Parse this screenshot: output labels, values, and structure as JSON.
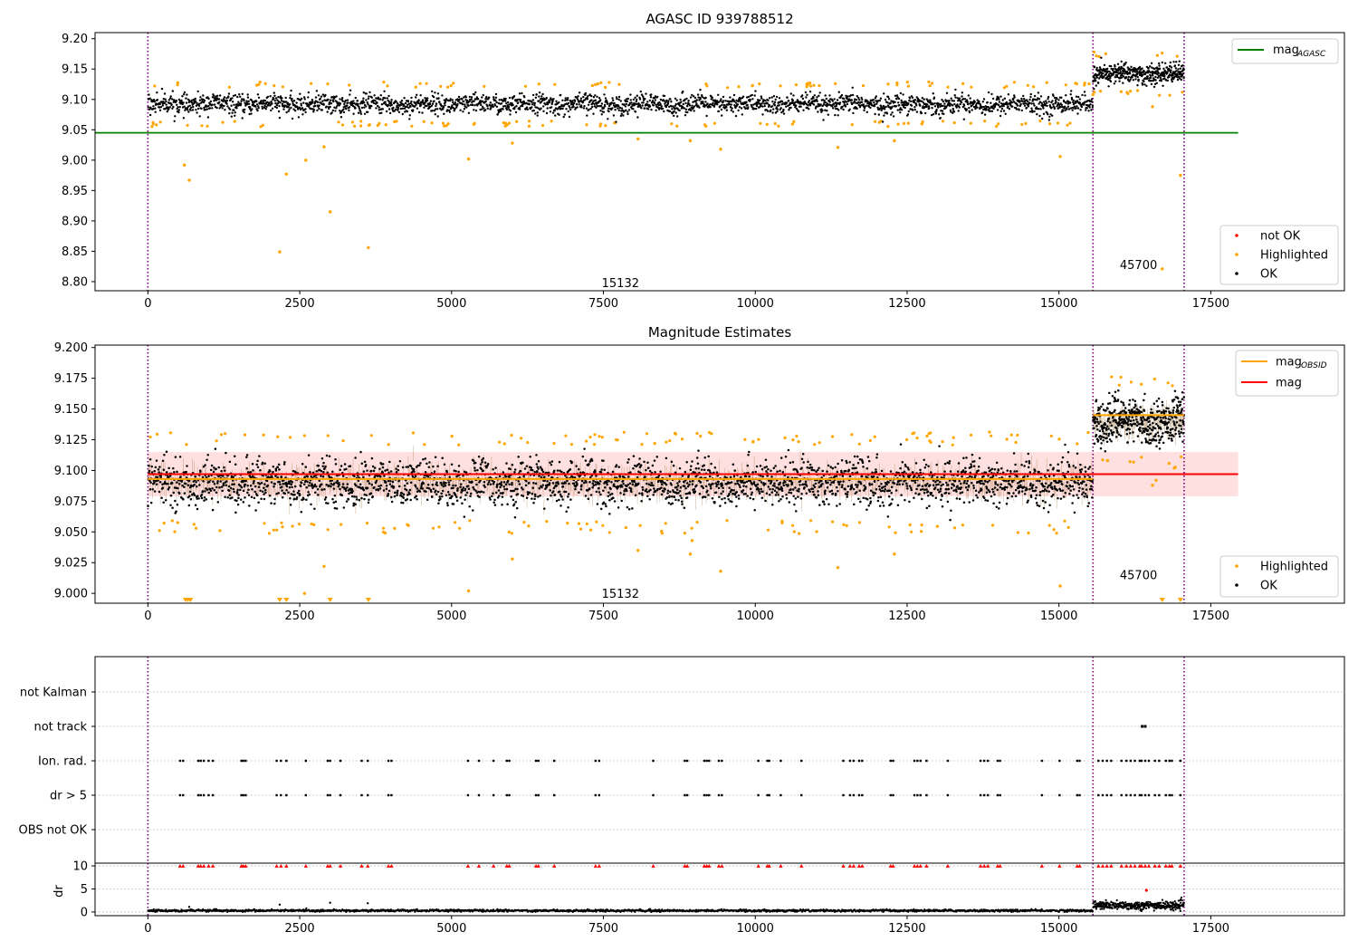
{
  "chart_data": [
    {
      "type": "scatter",
      "title": "AGASC ID 939788512",
      "xlim": [
        -870,
        19700
      ],
      "ylim": [
        8.785,
        9.21
      ],
      "x_ticks": [
        0,
        2500,
        5000,
        7500,
        10000,
        12500,
        15000,
        17500
      ],
      "x_tick_labels": [
        "0",
        "2500",
        "5000",
        "7500",
        "10000",
        "12500",
        "15000",
        "17500"
      ],
      "y_ticks": [
        8.8,
        8.85,
        8.9,
        8.95,
        9.0,
        9.05,
        9.1,
        9.15,
        9.2
      ],
      "y_tick_labels": [
        "8.80",
        "8.85",
        "8.90",
        "8.95",
        "9.00",
        "9.05",
        "9.10",
        "9.15",
        "9.20"
      ],
      "obs_boundaries": [
        0,
        15560,
        17060
      ],
      "obsid_labels": [
        {
          "text": "15132",
          "x": 7780,
          "y": 8.797
        },
        {
          "text": "45700",
          "x": 16310,
          "y": 8.827
        }
      ],
      "reference_lines": [
        {
          "name": "mag_AGASC",
          "value": 9.045,
          "x_range": [
            -870,
            17950
          ],
          "color": "#008000"
        }
      ],
      "ok_segments": [
        {
          "x_range": [
            0,
            15560
          ],
          "mean": 9.092,
          "spread": 0.016
        },
        {
          "x_range": [
            15560,
            17060
          ],
          "mean": 9.142,
          "spread": 0.016
        }
      ],
      "highlighted_outliers": [
        [
          600,
          8.992
        ],
        [
          680,
          8.967
        ],
        [
          2170,
          8.849
        ],
        [
          2280,
          8.977
        ],
        [
          2600,
          9.0
        ],
        [
          2900,
          9.022
        ],
        [
          3000,
          8.915
        ],
        [
          3630,
          8.856
        ],
        [
          5280,
          9.002
        ],
        [
          6000,
          9.028
        ],
        [
          8070,
          9.035
        ],
        [
          8930,
          9.032
        ],
        [
          9430,
          9.018
        ],
        [
          11360,
          9.021
        ],
        [
          12290,
          9.032
        ],
        [
          15020,
          9.006
        ],
        [
          16540,
          9.088
        ],
        [
          16700,
          8.821
        ],
        [
          17000,
          8.975
        ]
      ],
      "legend": {
        "series": [
          {
            "label": "mag",
            "sub": "AGASC",
            "color": "#008000",
            "kind": "line"
          }
        ],
        "points": [
          {
            "label": "not OK",
            "color": "#ff0000"
          },
          {
            "label": "Highlighted",
            "color": "#ffa500"
          },
          {
            "label": "OK",
            "color": "#000000"
          }
        ]
      }
    },
    {
      "type": "scatter",
      "title": "Magnitude Estimates",
      "xlim": [
        -870,
        19700
      ],
      "ylim": [
        8.992,
        9.202
      ],
      "x_ticks": [
        0,
        2500,
        5000,
        7500,
        10000,
        12500,
        15000,
        17500
      ],
      "x_tick_labels": [
        "0",
        "2500",
        "5000",
        "7500",
        "10000",
        "12500",
        "15000",
        "17500"
      ],
      "y_ticks": [
        9.0,
        9.025,
        9.05,
        9.075,
        9.1,
        9.125,
        9.15,
        9.175,
        9.2
      ],
      "y_tick_labels": [
        "9.000",
        "9.025",
        "9.050",
        "9.075",
        "9.100",
        "9.125",
        "9.150",
        "9.175",
        "9.200"
      ],
      "obs_boundaries": [
        0,
        15560,
        17060
      ],
      "obsid_labels": [
        {
          "text": "15132",
          "x": 7780,
          "y": 8.9995
        },
        {
          "text": "45700",
          "x": 16310,
          "y": 9.0145
        }
      ],
      "band": {
        "x_range": [
          0,
          17950
        ],
        "y_range": [
          9.079,
          9.115
        ],
        "color": "#ffcccc"
      },
      "reference_lines": [
        {
          "name": "mag",
          "value": 9.097,
          "x_range": [
            0,
            17950
          ],
          "color": "#ff0000"
        },
        {
          "name": "mag_OBSID",
          "value": 9.093,
          "x_range": [
            0,
            15560
          ],
          "color": "#ffa500"
        },
        {
          "name": "mag_OBSID",
          "value": 9.145,
          "x_range": [
            15560,
            17060
          ],
          "color": "#ffa500"
        }
      ],
      "ok_segments": [
        {
          "x_range": [
            0,
            15560
          ],
          "mean": 9.09,
          "spread": 0.018
        },
        {
          "x_range": [
            15560,
            17060
          ],
          "mean": 9.14,
          "spread": 0.017
        }
      ],
      "highlighted_outliers": [
        [
          5280,
          9.002
        ],
        [
          6000,
          9.028
        ],
        [
          8070,
          9.035
        ],
        [
          8930,
          9.032
        ],
        [
          8960,
          9.043
        ],
        [
          9430,
          9.018
        ],
        [
          11360,
          9.021
        ],
        [
          12290,
          9.032
        ],
        [
          15020,
          9.006
        ],
        [
          16540,
          9.088
        ],
        [
          16600,
          9.092
        ],
        [
          15800,
          9.108
        ],
        [
          2580,
          9.0
        ],
        [
          2900,
          9.022
        ]
      ],
      "clipped_markers_x": [
        620,
        660,
        700,
        2170,
        2280,
        3000,
        3630,
        16700,
        17000
      ],
      "legend": {
        "series": [
          {
            "label": "mag",
            "sub": "OBSID",
            "color": "#ffa500",
            "kind": "line"
          },
          {
            "label": "mag",
            "sub": "",
            "color": "#ff0000",
            "kind": "line"
          }
        ],
        "points": [
          {
            "label": "Highlighted",
            "color": "#ffa500"
          },
          {
            "label": "OK",
            "color": "#000000"
          }
        ]
      }
    },
    {
      "type": "scatter",
      "title": "",
      "xlim": [
        -870,
        19700
      ],
      "flag_categories": [
        "not Kalman",
        "not track",
        "Ion. rad.",
        "dr > 5",
        "OBS not OK"
      ],
      "obs_boundaries": [
        0,
        15560,
        17060
      ],
      "flag_events_x": [
        530,
        580,
        830,
        870,
        920,
        1000,
        1070,
        1540,
        1570,
        1610,
        2120,
        2190,
        2280,
        2600,
        2960,
        3000,
        3170,
        3520,
        3620,
        3960,
        4010,
        5270,
        5450,
        5690,
        5910,
        5950,
        6390,
        6430,
        6690,
        7370,
        7430,
        8320,
        8840,
        8880,
        9160,
        9200,
        9240,
        9400,
        9450,
        10050,
        10200,
        10230,
        10420,
        10760,
        11450,
        11560,
        11620,
        11710,
        11760,
        12230,
        12270,
        12620,
        12670,
        12720,
        12820,
        13170,
        13710,
        13770,
        13830,
        13990,
        14030,
        14720,
        15010,
        15300,
        15340,
        15650,
        15720,
        15790,
        15860,
        16030,
        16110,
        16180,
        16250,
        16330,
        16360,
        16420,
        16480,
        16580,
        16650,
        16760,
        16820,
        16860,
        17000
      ],
      "not_track_x": [
        16370,
        16420
      ],
      "dr_panel": {
        "ylabel": "dr",
        "ylim": [
          -0.8,
          10.6
        ],
        "y_ticks": [
          0,
          5,
          10
        ],
        "y_tick_labels": [
          "0",
          "5",
          "10"
        ],
        "x_ticks": [
          0,
          2500,
          5000,
          7500,
          10000,
          12500,
          15000,
          17500
        ],
        "x_tick_labels": [
          "0",
          "2500",
          "5000",
          "7500",
          "10000",
          "12500",
          "15000",
          "17500"
        ],
        "clipped_level": 10,
        "segments": [
          {
            "x_range": [
              0,
              15560
            ],
            "mean": 0.3,
            "spread": 0.12
          },
          {
            "x_range": [
              15560,
              17060
            ],
            "mean": 1.4,
            "spread": 0.45
          }
        ],
        "not_ok_point": [
          16440,
          4.7
        ]
      }
    }
  ]
}
